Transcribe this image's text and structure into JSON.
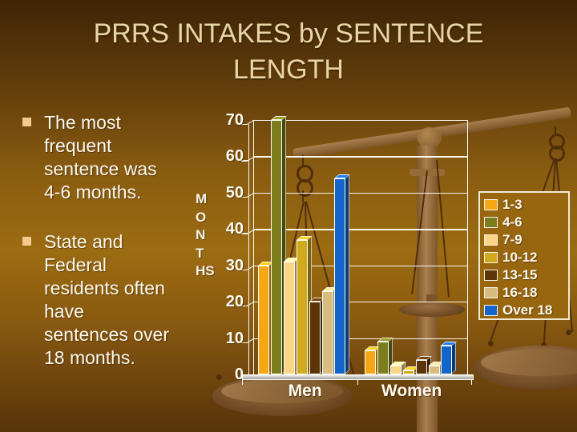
{
  "slide": {
    "title": "PRRS INTAKES by SENTENCE\nLENGTH",
    "bullets": [
      {
        "text": "The most\nfrequent\nsentence was\n4-6 months."
      },
      {
        "text": "State and\nFederal\nresidents often\nhave\nsentences over\n18 months."
      }
    ]
  },
  "chart_data": {
    "type": "bar",
    "title": "",
    "categories": [
      "Men",
      "Women"
    ],
    "series": [
      {
        "name": "1-3",
        "color": "#F7A714",
        "values": [
          30,
          6.5
        ]
      },
      {
        "name": "4-6",
        "color": "#7C7E1E",
        "values": [
          70,
          9
        ]
      },
      {
        "name": "7-9",
        "color": "#FCD485",
        "values": [
          31,
          2.5
        ]
      },
      {
        "name": "10-12",
        "color": "#D0A91D",
        "values": [
          37,
          1
        ]
      },
      {
        "name": "13-15",
        "color": "#5E3508",
        "values": [
          20,
          4
        ]
      },
      {
        "name": "16-18",
        "color": "#D9BD7E",
        "values": [
          23,
          2.5
        ]
      },
      {
        "name": "Over 18",
        "color": "#1365CB",
        "values": [
          54,
          8
        ]
      }
    ],
    "ylabel": "MONTHS",
    "ylabel_display": "M\nO\nN\nT\nHS",
    "ylim": [
      0,
      70
    ],
    "yticks": [
      0,
      10,
      20,
      30,
      40,
      50,
      60,
      70
    ],
    "grid": true,
    "gridline_color": "#FFFFFA",
    "legend_position": "right",
    "bar_style": "3d"
  },
  "colors": {
    "title_text": "#E9D6A6",
    "body_text": "#FCFAEF",
    "bullet_marker": "#F3C98E",
    "axis_text": "#FDFBF0",
    "legend_border": "#F1E9D4"
  }
}
